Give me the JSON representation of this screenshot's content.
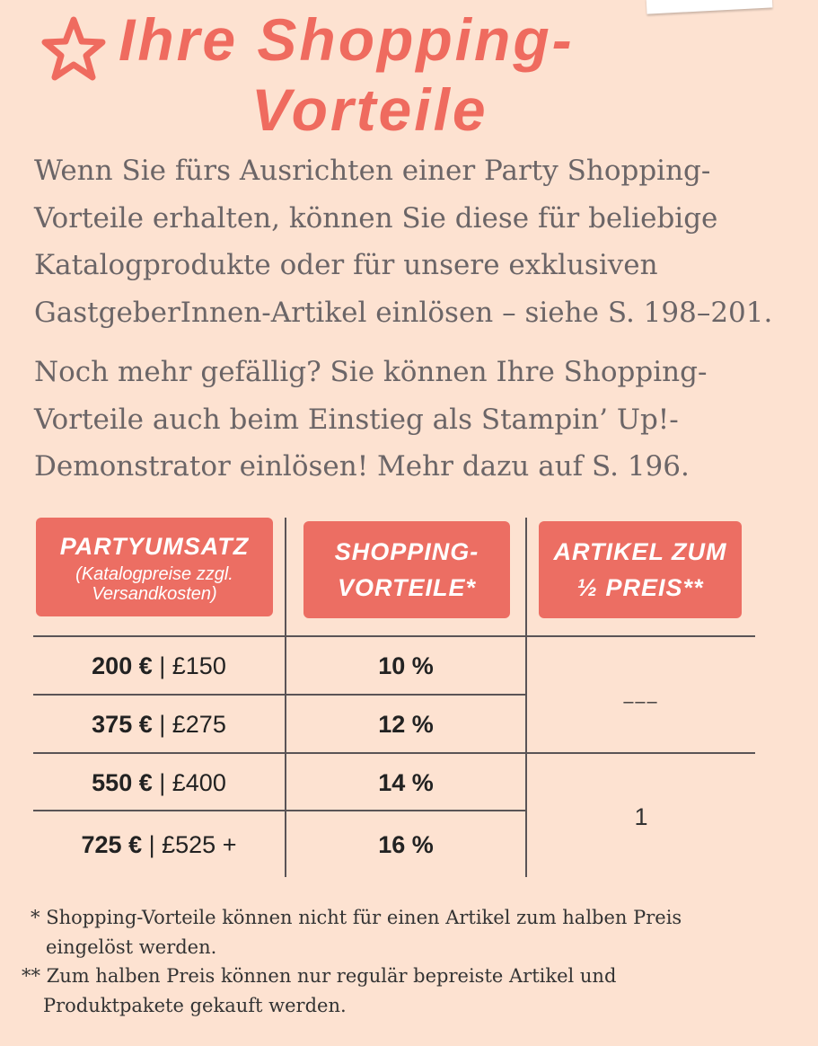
{
  "title": {
    "line1": "Ihre Shopping-",
    "line2": "Vorteile"
  },
  "intro": {
    "p1": [
      "Wenn Sie fürs Ausrichten einer Party Shopping-",
      "Vorteile erhalten, können Sie diese für beliebige",
      "Katalogprodukte oder für unsere exklusiven",
      "GastgeberInnen-Artikel einlösen – siehe S. 198–201."
    ],
    "p2": [
      "Noch mehr gefällig? Sie können Ihre Shopping-",
      "Vorteile auch beim Einstieg als Stampin’ Up!-",
      "Demonstrator einlösen! Mehr dazu auf S. 196."
    ]
  },
  "table": {
    "headers": [
      {
        "title": "Partyumsatz",
        "subtitle": [
          "(Katalogpreise zzgl.",
          "Versandkosten)"
        ]
      },
      {
        "title": [
          "Shopping-",
          "Vorteile*"
        ]
      },
      {
        "title": [
          "Artikel zum",
          "½ Preis**"
        ]
      }
    ],
    "rows": [
      {
        "eur": "200 €",
        "gbp": "| £150",
        "benefit": "10 %"
      },
      {
        "eur": "375 €",
        "gbp": "| £275",
        "benefit": "12 %"
      },
      {
        "eur": "550 €",
        "gbp": "| £400",
        "benefit": "14 %"
      },
      {
        "eur": "725 €",
        "gbp": "| £525 +",
        "benefit": "16 %"
      }
    ],
    "half_price": {
      "none": "–––",
      "one": "1"
    }
  },
  "footnotes": {
    "f1": {
      "mark": "*",
      "lines": [
        "Shopping-Vorteile können nicht für einen Artikel zum halben Preis",
        "eingelöst werden."
      ]
    },
    "f2": {
      "mark": "**",
      "lines": [
        "Zum halben Preis können nur regulär bepreiste Artikel und",
        "Produktpakete gekauft werden."
      ]
    }
  },
  "colors": {
    "background": "#fde2d1",
    "accent": "#ec6e63",
    "text": "#6b6567"
  }
}
